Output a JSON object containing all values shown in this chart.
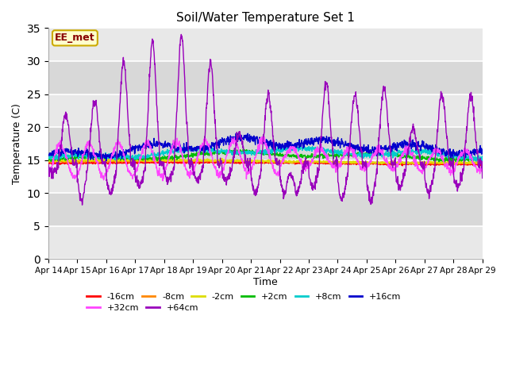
{
  "title": "Soil/Water Temperature Set 1",
  "xlabel": "Time",
  "ylabel": "Temperature (C)",
  "ylim": [
    0,
    35
  ],
  "yticks": [
    0,
    5,
    10,
    15,
    20,
    25,
    30,
    35
  ],
  "plot_bg_light": "#f0f0f0",
  "plot_bg_dark": "#e0e0e0",
  "fig_bg": "#ffffff",
  "label_box_text": "EE_met",
  "label_box_facecolor": "#ffffcc",
  "label_box_edgecolor": "#ccaa00",
  "label_box_textcolor": "#880000",
  "series_colors": {
    "-16cm": "#ff0000",
    "-8cm": "#ff8800",
    "-2cm": "#dddd00",
    "+2cm": "#00bb00",
    "+8cm": "#00cccc",
    "+16cm": "#0000cc",
    "+32cm": "#ff44ff",
    "+64cm": "#9900bb"
  },
  "grid_color": "#ffffff",
  "tick_label_dates": [
    "Apr 14",
    "Apr 15",
    "Apr 16",
    "Apr 17",
    "Apr 18",
    "Apr 19",
    "Apr 20",
    "Apr 21",
    "Apr 22",
    "Apr 23",
    "Apr 24",
    "Apr 25",
    "Apr 26",
    "Apr 27",
    "Apr 28",
    "Apr 29"
  ]
}
